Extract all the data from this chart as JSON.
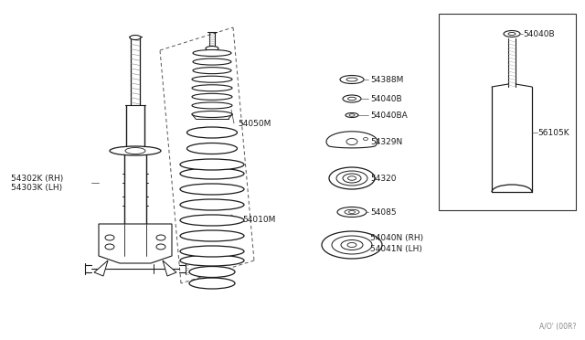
{
  "bg_color": "#ffffff",
  "line_color": "#1a1a1a",
  "label_color": "#1a1a1a",
  "watermark": "A/O' (00R?",
  "parts_labels": {
    "strut": [
      "54302K (RH)",
      "54303K (LH)"
    ],
    "bumper": "54050M",
    "spring": "54010M",
    "p1": "54388M",
    "p2": "54040B",
    "p3": "54040BA",
    "p4": "54329N",
    "p5": "54320",
    "p6": "54085",
    "p7l1": "54040N (RH)",
    "p7l2": "54041N (LH)",
    "inset1": "54040B",
    "inset2": "56105K"
  }
}
